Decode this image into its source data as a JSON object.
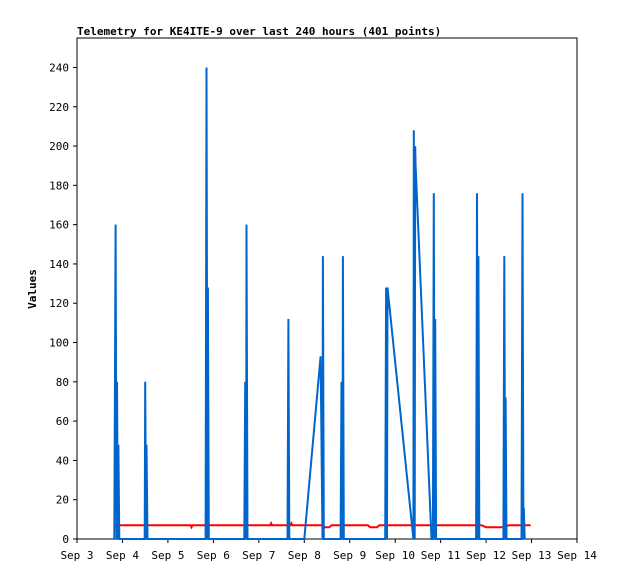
{
  "chart_data": {
    "type": "line",
    "title": "Telemetry for KE4ITE-9 over last 240 hours (401 points)",
    "ylabel": "Values",
    "xlabel": "",
    "xlim": [
      3.0,
      14.0
    ],
    "ylim": [
      0,
      255
    ],
    "x_ticks": [
      {
        "x": 3,
        "label": "Sep 3"
      },
      {
        "x": 4,
        "label": "Sep 4"
      },
      {
        "x": 5,
        "label": "Sep 5"
      },
      {
        "x": 6,
        "label": "Sep 6"
      },
      {
        "x": 7,
        "label": "Sep 7"
      },
      {
        "x": 8,
        "label": "Sep 8"
      },
      {
        "x": 9,
        "label": "Sep 9"
      },
      {
        "x": 10,
        "label": "Sep 10"
      },
      {
        "x": 11,
        "label": "Sep 11"
      },
      {
        "x": 12,
        "label": "Sep 12"
      },
      {
        "x": 13,
        "label": "Sep 13"
      },
      {
        "x": 14,
        "label": "Sep 14"
      }
    ],
    "y_ticks": [
      0,
      20,
      40,
      60,
      80,
      100,
      120,
      140,
      160,
      180,
      200,
      220,
      240
    ],
    "grid": false,
    "legend": "none",
    "series": [
      {
        "color": "#000000",
        "points": [
          [
            3.82,
            0
          ],
          [
            12.98,
            0
          ]
        ]
      },
      {
        "color": "#ff0000",
        "points": [
          [
            3.82,
            7
          ],
          [
            3.85,
            6
          ],
          [
            3.9,
            7
          ],
          [
            4.5,
            7
          ],
          [
            5.0,
            7
          ],
          [
            5.5,
            7
          ],
          [
            5.52,
            6
          ],
          [
            5.54,
            7
          ],
          [
            6.5,
            7
          ],
          [
            7.25,
            7
          ],
          [
            7.27,
            8
          ],
          [
            7.29,
            7
          ],
          [
            7.7,
            7
          ],
          [
            7.72,
            8
          ],
          [
            7.74,
            7
          ],
          [
            8.4,
            7
          ],
          [
            8.45,
            6
          ],
          [
            8.55,
            6
          ],
          [
            8.6,
            7
          ],
          [
            9.4,
            7
          ],
          [
            9.45,
            6
          ],
          [
            9.6,
            6
          ],
          [
            9.65,
            7
          ],
          [
            11.9,
            7
          ],
          [
            12.0,
            6
          ],
          [
            12.4,
            6
          ],
          [
            12.5,
            7
          ],
          [
            12.98,
            7
          ]
        ]
      },
      {
        "color": "#0066cc",
        "points": [
          [
            3.82,
            0
          ],
          [
            3.85,
            160
          ],
          [
            3.87,
            0
          ],
          [
            3.88,
            80
          ],
          [
            3.9,
            0
          ],
          [
            3.91,
            48
          ],
          [
            3.93,
            0
          ],
          [
            4.49,
            0
          ],
          [
            4.5,
            80
          ],
          [
            4.52,
            0
          ],
          [
            4.53,
            48
          ],
          [
            4.55,
            0
          ],
          [
            5.83,
            0
          ],
          [
            5.85,
            240
          ],
          [
            5.87,
            0
          ],
          [
            5.88,
            128
          ],
          [
            5.9,
            0
          ],
          [
            6.68,
            0
          ],
          [
            6.7,
            80
          ],
          [
            6.72,
            0
          ],
          [
            6.73,
            160
          ],
          [
            6.75,
            0
          ],
          [
            7.63,
            0
          ],
          [
            7.65,
            112
          ],
          [
            7.67,
            0
          ],
          [
            8.0,
            0
          ],
          [
            8.36,
            93
          ],
          [
            8.4,
            0
          ],
          [
            8.41,
            144
          ],
          [
            8.43,
            0
          ],
          [
            8.8,
            0
          ],
          [
            8.82,
            80
          ],
          [
            8.84,
            0
          ],
          [
            8.85,
            144
          ],
          [
            8.87,
            0
          ],
          [
            9.78,
            0
          ],
          [
            9.8,
            128
          ],
          [
            9.82,
            0
          ],
          [
            9.83,
            128
          ],
          [
            10.4,
            0
          ],
          [
            10.41,
            208
          ],
          [
            10.43,
            0
          ],
          [
            10.44,
            200
          ],
          [
            10.45,
            190
          ],
          [
            10.8,
            0
          ],
          [
            10.83,
            0
          ],
          [
            10.85,
            176
          ],
          [
            10.87,
            0
          ],
          [
            10.88,
            112
          ],
          [
            10.9,
            0
          ],
          [
            11.78,
            0
          ],
          [
            11.8,
            176
          ],
          [
            11.82,
            0
          ],
          [
            11.83,
            144
          ],
          [
            11.85,
            0
          ],
          [
            12.38,
            0
          ],
          [
            12.4,
            144
          ],
          [
            12.42,
            0
          ],
          [
            12.43,
            72
          ],
          [
            12.45,
            0
          ],
          [
            12.78,
            0
          ],
          [
            12.8,
            176
          ],
          [
            12.82,
            0
          ],
          [
            12.83,
            16
          ],
          [
            12.85,
            0
          ]
        ]
      }
    ]
  }
}
